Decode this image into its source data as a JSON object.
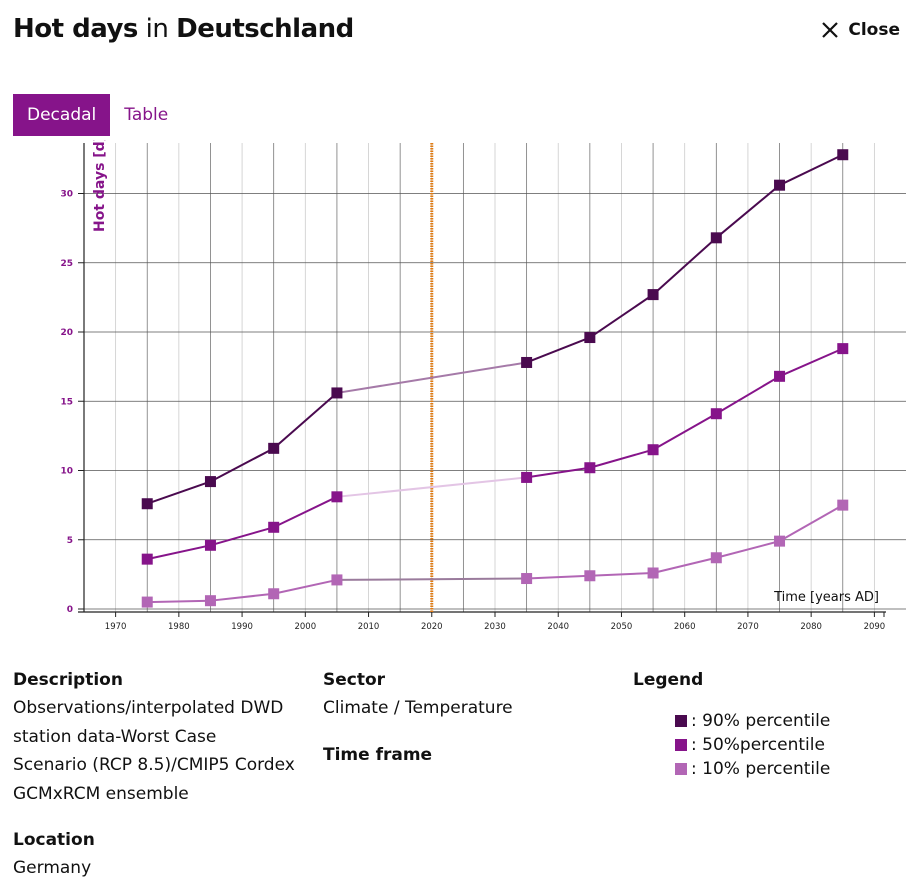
{
  "header": {
    "prefix": "Hot days",
    "middle": "in",
    "region": "Deutschland"
  },
  "close_label": "Close",
  "tabs": [
    {
      "label": "Decadal"
    },
    {
      "label": "Table"
    }
  ],
  "chart_data": {
    "type": "line",
    "ylabel": "Hot days [d]",
    "xlabel": "Time [years AD]",
    "xlim": [
      1965,
      2095
    ],
    "ylim": [
      0,
      34
    ],
    "xticks": [
      1970,
      1980,
      1990,
      2000,
      2010,
      2020,
      2030,
      2040,
      2050,
      2060,
      2070,
      2080,
      2090
    ],
    "yticks": [
      0,
      5,
      10,
      15,
      20,
      25,
      30
    ],
    "marker_line": 2020,
    "grid": true,
    "series": [
      {
        "name": "90% percentile",
        "color": "#4a0a4f",
        "bridge_color": "#a57aa8",
        "x": [
          1975,
          1985,
          1995,
          2005,
          2035,
          2045,
          2055,
          2065,
          2075,
          2085
        ],
        "y": [
          7.6,
          9.2,
          11.6,
          15.6,
          17.8,
          19.6,
          22.7,
          26.8,
          30.6,
          32.8
        ]
      },
      {
        "name": "50%percentile",
        "color": "#86148a",
        "bridge_color": "#e3c5e5",
        "x": [
          1975,
          1985,
          1995,
          2005,
          2035,
          2045,
          2055,
          2065,
          2075,
          2085
        ],
        "y": [
          3.6,
          4.6,
          5.9,
          8.1,
          9.5,
          10.2,
          11.5,
          14.1,
          16.8,
          18.8
        ]
      },
      {
        "name": "10% percentile",
        "color": "#b266b5",
        "bridge_color": "#9a7b9c",
        "x": [
          1975,
          1985,
          1995,
          2005,
          2035,
          2045,
          2055,
          2065,
          2075,
          2085
        ],
        "y": [
          0.5,
          0.6,
          1.1,
          2.1,
          2.2,
          2.4,
          2.6,
          3.7,
          4.9,
          7.5
        ]
      }
    ]
  },
  "description": {
    "heading": "Description",
    "lines": [
      "Observations/interpolated DWD",
      "station data-Worst Case",
      "Scenario (RCP 8.5)/CMIP5 Cordex",
      "GCMxRCM ensemble"
    ]
  },
  "location": {
    "heading": "Location",
    "value": "Germany"
  },
  "sector": {
    "heading": "Sector",
    "value": "Climate / Temperature"
  },
  "time_frame": {
    "heading": "Time frame"
  },
  "legend": {
    "heading": "Legend",
    "items": [
      {
        "label": ": 90% percentile",
        "color": "#4a0a4f"
      },
      {
        "label": ": 50%percentile",
        "color": "#86148a"
      },
      {
        "label": ": 10% percentile",
        "color": "#b266b5"
      }
    ]
  }
}
